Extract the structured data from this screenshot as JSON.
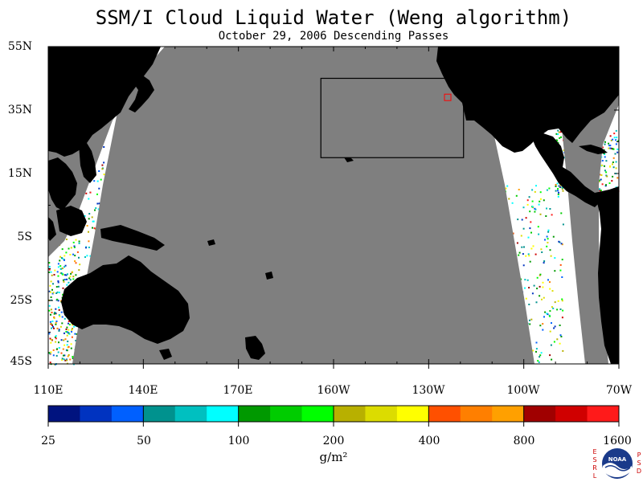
{
  "title": "SSM/I Cloud Liquid Water (Weng algorithm)",
  "subtitle": "October 29, 2006  Descending Passes",
  "latitude_labels": [
    "55N",
    "35N",
    "15N",
    "5S",
    "25S",
    "45S"
  ],
  "longitude_labels": [
    "110E",
    "140E",
    "170E",
    "160W",
    "130W",
    "100W",
    "70W"
  ],
  "colorbar": {
    "tick_labels": [
      "25",
      "50",
      "100",
      "200",
      "400",
      "800",
      "1600"
    ],
    "unit": "g/m²",
    "colors": [
      "#00137f",
      "#0033c0",
      "#0060ff",
      "#00928e",
      "#00c0c0",
      "#00ffff",
      "#009900",
      "#00cc00",
      "#00ff00",
      "#b8b000",
      "#dcdc00",
      "#ffff00",
      "#ff5000",
      "#ff7f00",
      "#ffa000",
      "#a00000",
      "#d00000",
      "#ff1a1a"
    ]
  },
  "map": {
    "extent": {
      "lon_min": 110,
      "lon_max": 290,
      "lat_min": -45,
      "lat_max": 55
    },
    "colors": {
      "land": "#000000",
      "no_data": "#7f7f7f",
      "clear": "#ffffff",
      "box": "#000000",
      "marker": "#ff0000"
    },
    "region_box": {
      "lon_min": 196,
      "lon_max": 241,
      "lat_min": 20,
      "lat_max": 45
    },
    "marker": {
      "lon": 236,
      "lat": 39
    }
  },
  "logo": {
    "left_letters": "ESRL",
    "right_letters": "PSD",
    "center_text": "NOAA"
  }
}
